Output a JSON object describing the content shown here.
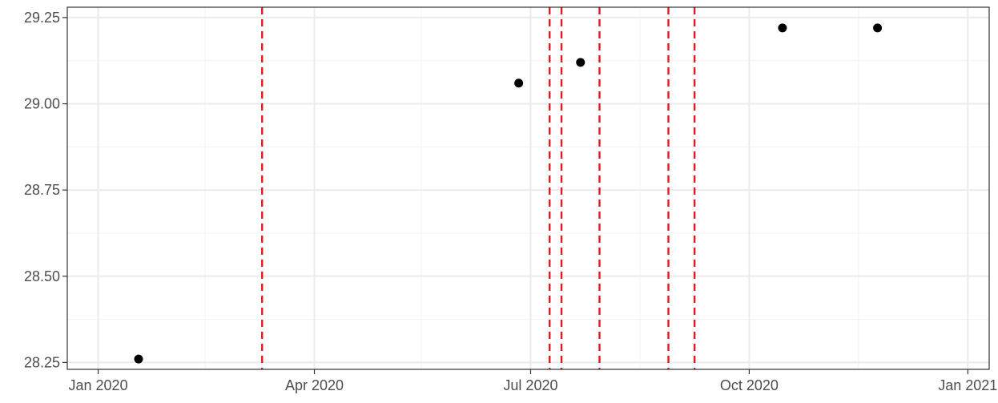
{
  "chart_data": {
    "type": "scatter",
    "title": "",
    "xlabel": "",
    "ylabel": "",
    "x_axis": {
      "scale": "date",
      "range": [
        "2019-12-19",
        "2021-01-10"
      ],
      "ticks": [
        {
          "value": "2020-01-01",
          "label": "Jan 2020"
        },
        {
          "value": "2020-04-01",
          "label": "Apr 2020"
        },
        {
          "value": "2020-07-01",
          "label": "Jul 2020"
        },
        {
          "value": "2020-10-01",
          "label": "Oct 2020"
        },
        {
          "value": "2021-01-01",
          "label": "Jan 2021"
        }
      ],
      "minor_ticks": [
        "2020-02-15",
        "2020-05-16",
        "2020-08-16",
        "2020-11-16"
      ]
    },
    "y_axis": {
      "range": [
        28.23,
        29.28
      ],
      "ticks": [
        {
          "value": 28.25,
          "label": "28.25"
        },
        {
          "value": 28.5,
          "label": "28.50"
        },
        {
          "value": 28.75,
          "label": "28.75"
        },
        {
          "value": 29.0,
          "label": "29.00"
        },
        {
          "value": 29.25,
          "label": "29.25"
        }
      ],
      "minor_ticks": [
        28.375,
        28.625,
        28.875,
        29.125
      ]
    },
    "grid": true,
    "points": [
      {
        "x": "2020-01-18",
        "y": 28.26
      },
      {
        "x": "2020-06-26",
        "y": 29.06
      },
      {
        "x": "2020-07-22",
        "y": 29.12
      },
      {
        "x": "2020-10-15",
        "y": 29.22
      },
      {
        "x": "2020-11-24",
        "y": 29.22
      }
    ],
    "vlines": [
      "2020-03-10",
      "2020-07-09",
      "2020-07-14",
      "2020-07-30",
      "2020-08-28",
      "2020-09-08"
    ],
    "colors": {
      "points": "#000000",
      "vlines": "#e31a1c",
      "grid_major": "#ebebeb",
      "grid_minor": "#f4f4f4",
      "panel_border": "#333333",
      "text": "#4d4d4d"
    }
  }
}
